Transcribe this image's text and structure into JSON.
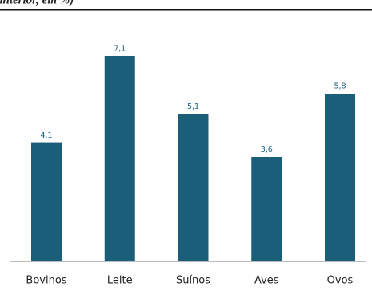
{
  "chart_data": {
    "type": "bar",
    "title": "anterior, em %)",
    "categories": [
      "Bovinos",
      "Leite",
      "Suínos",
      "Aves",
      "Ovos"
    ],
    "values": [
      4.1,
      7.1,
      5.1,
      3.6,
      5.8
    ],
    "value_labels": [
      "4,1",
      "7,1",
      "5,1",
      "3,6",
      "5,8"
    ],
    "color": "#1b5e7a"
  }
}
